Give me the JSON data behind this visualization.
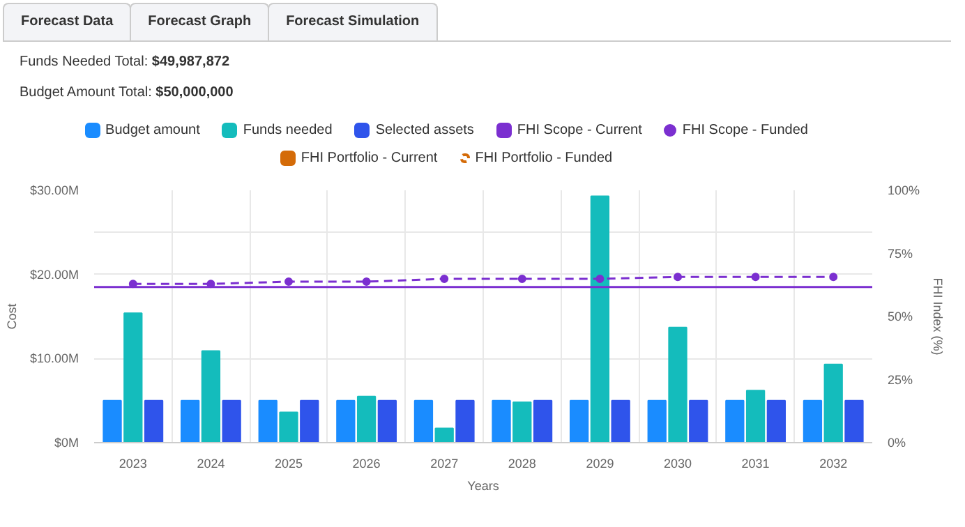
{
  "chart_data": {
    "type": "bar",
    "categories": [
      "2023",
      "2024",
      "2025",
      "2026",
      "2027",
      "2028",
      "2029",
      "2030",
      "2031",
      "2032"
    ],
    "annotations": [
      "Forecast Data",
      "Forecast Graph",
      "Forecast Simulation",
      "Funds Needed Total: $49,987,872",
      "Budget Amount Total: $50,000,000"
    ],
    "xlabel": "Years",
    "ylabel": "Cost",
    "y2label": "FHI Index (%)",
    "series": [
      {
        "name": "Budget amount",
        "color": "#1a8cff",
        "values": [
          5,
          5,
          5,
          5,
          5,
          5,
          5,
          5,
          5,
          5
        ]
      },
      {
        "name": "Funds needed",
        "color": "#14bcbc",
        "values": [
          15.4,
          10.9,
          3.6,
          5.5,
          1.7,
          4.8,
          29.3,
          13.7,
          6.2,
          9.3
        ]
      },
      {
        "name": "Selected assets",
        "color": "#2f54eb",
        "values": [
          5,
          5,
          5,
          5,
          5,
          5,
          5,
          5,
          5,
          5
        ]
      },
      {
        "name": "FHI Scope - Funded",
        "type": "line",
        "axis": "y2",
        "color": "#7b2fd0",
        "line_style": "dashed",
        "marker": "circle",
        "values": [
          62.9,
          62.9,
          63.8,
          63.8,
          64.9,
          64.9,
          64.9,
          65.7,
          65.7,
          65.7
        ]
      },
      {
        "name": "FHI Portfolio - Current",
        "type": "line",
        "axis": "y2",
        "color": "#d46b08",
        "values": [
          null,
          null,
          null,
          null,
          null,
          null,
          null,
          null,
          null,
          null
        ]
      },
      {
        "name": "FHI Portfolio - Funded",
        "type": "line",
        "axis": "y2",
        "color": "#d46b08",
        "line_style": "dashed",
        "values": [
          null,
          null,
          null,
          null,
          null,
          null,
          null,
          null,
          null,
          null
        ]
      }
    ],
    "ref_lines": [
      {
        "axis": "y2",
        "value": 61.7,
        "label": "FHI Scope - Current",
        "color": "#7b2fd0"
      }
    ],
    "ylim": [
      0,
      30
    ],
    "yticks": [
      {
        "value": 0,
        "label": "$0M"
      },
      {
        "value": 10,
        "label": "$10.00M"
      },
      {
        "value": 20,
        "label": "$20.00M"
      },
      {
        "value": 30,
        "label": "$30.00M"
      }
    ],
    "y2lim": [
      0,
      100
    ],
    "y2ticks": [
      {
        "value": 0,
        "label": "0%"
      },
      {
        "value": 25,
        "label": "25%"
      },
      {
        "value": 50,
        "label": "50%"
      },
      {
        "value": 75,
        "label": "75%"
      },
      {
        "value": 100,
        "label": "100%"
      }
    ],
    "grid": true,
    "legend": "top"
  }
}
